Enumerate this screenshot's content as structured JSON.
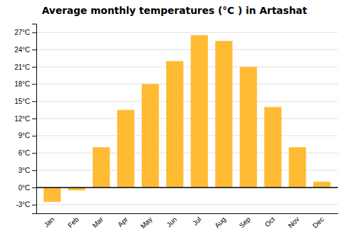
{
  "chart_data": {
    "type": "bar",
    "title": "Average monthly temperatures (°C ) in Artashat",
    "categories": [
      "Jan",
      "Feb",
      "Mar",
      "Apr",
      "May",
      "Jun",
      "Jul",
      "Aug",
      "Sep",
      "Oct",
      "Nov",
      "Dec"
    ],
    "values": [
      -2.5,
      -0.5,
      7.0,
      13.5,
      18.0,
      22.0,
      26.5,
      25.5,
      21.0,
      14.0,
      7.0,
      1.0
    ],
    "color": "#FFBB33",
    "ylim": [
      -4.5,
      28.5
    ],
    "yticks": [
      {
        "value": -3,
        "label": "-3°C"
      },
      {
        "value": 0,
        "label": "0°C"
      },
      {
        "value": 3,
        "label": "3°C"
      },
      {
        "value": 6,
        "label": "6°C"
      },
      {
        "value": 9,
        "label": "9°C"
      },
      {
        "value": 12,
        "label": "12°C"
      },
      {
        "value": 15,
        "label": "15°C"
      },
      {
        "value": 18,
        "label": "18°C"
      },
      {
        "value": 21,
        "label": "21°C"
      },
      {
        "value": 24,
        "label": "24°C"
      },
      {
        "value": 27,
        "label": "27°C"
      }
    ],
    "grid": true
  }
}
